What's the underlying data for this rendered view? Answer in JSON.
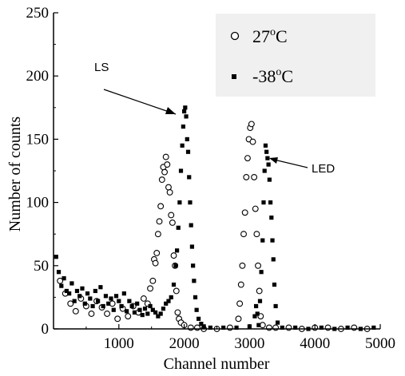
{
  "chart_data": {
    "type": "scatter",
    "xlabel": "Channel number",
    "ylabel": "Number of counts",
    "xlim": [
      0,
      5000
    ],
    "ylim": [
      0,
      250
    ],
    "xticks": [
      1000,
      2000,
      3000,
      4000,
      5000
    ],
    "yticks": [
      0,
      50,
      100,
      150,
      200,
      250
    ],
    "grid": false,
    "legend_position": "top-right",
    "series": [
      {
        "name": "27°C",
        "marker": "open-circle",
        "points": [
          [
            100,
            38
          ],
          [
            180,
            28
          ],
          [
            260,
            20
          ],
          [
            340,
            14
          ],
          [
            420,
            24
          ],
          [
            500,
            18
          ],
          [
            580,
            12
          ],
          [
            660,
            22
          ],
          [
            740,
            17
          ],
          [
            820,
            12
          ],
          [
            900,
            20
          ],
          [
            980,
            8
          ],
          [
            1060,
            16
          ],
          [
            1140,
            10
          ],
          [
            1220,
            18
          ],
          [
            1300,
            13
          ],
          [
            1380,
            24
          ],
          [
            1440,
            20
          ],
          [
            1480,
            32
          ],
          [
            1520,
            38
          ],
          [
            1540,
            55
          ],
          [
            1560,
            52
          ],
          [
            1580,
            60
          ],
          [
            1600,
            75
          ],
          [
            1620,
            85
          ],
          [
            1640,
            97
          ],
          [
            1660,
            118
          ],
          [
            1680,
            128
          ],
          [
            1700,
            124
          ],
          [
            1720,
            136
          ],
          [
            1740,
            130
          ],
          [
            1760,
            112
          ],
          [
            1780,
            108
          ],
          [
            1800,
            90
          ],
          [
            1820,
            84
          ],
          [
            1840,
            58
          ],
          [
            1860,
            50
          ],
          [
            1880,
            30
          ],
          [
            1900,
            13
          ],
          [
            1920,
            8
          ],
          [
            1950,
            5
          ],
          [
            2000,
            3
          ],
          [
            2100,
            1
          ],
          [
            2200,
            1
          ],
          [
            2300,
            0
          ],
          [
            2500,
            0
          ],
          [
            2700,
            1
          ],
          [
            2830,
            8
          ],
          [
            2850,
            20
          ],
          [
            2870,
            35
          ],
          [
            2890,
            50
          ],
          [
            2910,
            75
          ],
          [
            2930,
            92
          ],
          [
            2950,
            120
          ],
          [
            2970,
            135
          ],
          [
            2990,
            150
          ],
          [
            3010,
            159
          ],
          [
            3030,
            162
          ],
          [
            3050,
            148
          ],
          [
            3070,
            120
          ],
          [
            3090,
            95
          ],
          [
            3110,
            75
          ],
          [
            3130,
            50
          ],
          [
            3150,
            30
          ],
          [
            3170,
            10
          ],
          [
            3200,
            3
          ],
          [
            3300,
            1
          ],
          [
            3400,
            1
          ],
          [
            3600,
            1
          ],
          [
            3800,
            0
          ],
          [
            4000,
            1
          ],
          [
            4200,
            1
          ],
          [
            4400,
            0
          ],
          [
            4600,
            1
          ],
          [
            4800,
            0
          ]
        ]
      },
      {
        "name": "-38°C",
        "marker": "filled-square",
        "points": [
          [
            40,
            57
          ],
          [
            80,
            45
          ],
          [
            120,
            34
          ],
          [
            160,
            40
          ],
          [
            200,
            30
          ],
          [
            240,
            28
          ],
          [
            280,
            36
          ],
          [
            320,
            22
          ],
          [
            360,
            30
          ],
          [
            400,
            26
          ],
          [
            440,
            32
          ],
          [
            480,
            20
          ],
          [
            520,
            28
          ],
          [
            560,
            24
          ],
          [
            600,
            18
          ],
          [
            640,
            30
          ],
          [
            680,
            22
          ],
          [
            720,
            33
          ],
          [
            760,
            18
          ],
          [
            800,
            26
          ],
          [
            840,
            20
          ],
          [
            880,
            24
          ],
          [
            920,
            15
          ],
          [
            960,
            26
          ],
          [
            1000,
            22
          ],
          [
            1040,
            18
          ],
          [
            1080,
            28
          ],
          [
            1120,
            14
          ],
          [
            1160,
            22
          ],
          [
            1200,
            18
          ],
          [
            1240,
            13
          ],
          [
            1280,
            20
          ],
          [
            1320,
            15
          ],
          [
            1360,
            11
          ],
          [
            1400,
            16
          ],
          [
            1440,
            12
          ],
          [
            1480,
            18
          ],
          [
            1520,
            15
          ],
          [
            1560,
            13
          ],
          [
            1600,
            10
          ],
          [
            1640,
            12
          ],
          [
            1680,
            16
          ],
          [
            1720,
            20
          ],
          [
            1760,
            22
          ],
          [
            1800,
            25
          ],
          [
            1840,
            35
          ],
          [
            1870,
            50
          ],
          [
            1890,
            62
          ],
          [
            1910,
            80
          ],
          [
            1930,
            100
          ],
          [
            1950,
            125
          ],
          [
            1970,
            145
          ],
          [
            1985,
            160
          ],
          [
            2000,
            172
          ],
          [
            2015,
            175
          ],
          [
            2030,
            168
          ],
          [
            2045,
            150
          ],
          [
            2060,
            140
          ],
          [
            2075,
            120
          ],
          [
            2090,
            100
          ],
          [
            2105,
            82
          ],
          [
            2120,
            65
          ],
          [
            2135,
            50
          ],
          [
            2150,
            38
          ],
          [
            2170,
            25
          ],
          [
            2190,
            15
          ],
          [
            2220,
            8
          ],
          [
            2260,
            4
          ],
          [
            2300,
            2
          ],
          [
            2400,
            1
          ],
          [
            2600,
            1
          ],
          [
            2800,
            1
          ],
          [
            3000,
            2
          ],
          [
            3080,
            10
          ],
          [
            3100,
            18
          ],
          [
            3120,
            12
          ],
          [
            3140,
            3
          ],
          [
            3160,
            22
          ],
          [
            3180,
            45
          ],
          [
            3200,
            70
          ],
          [
            3215,
            100
          ],
          [
            3230,
            125
          ],
          [
            3245,
            145
          ],
          [
            3260,
            140
          ],
          [
            3275,
            135
          ],
          [
            3290,
            130
          ],
          [
            3305,
            118
          ],
          [
            3320,
            100
          ],
          [
            3335,
            88
          ],
          [
            3350,
            70
          ],
          [
            3365,
            55
          ],
          [
            3380,
            35
          ],
          [
            3400,
            18
          ],
          [
            3430,
            5
          ],
          [
            3500,
            1
          ],
          [
            3700,
            1
          ],
          [
            3900,
            0
          ],
          [
            4100,
            1
          ],
          [
            4300,
            0
          ],
          [
            4500,
            1
          ],
          [
            4700,
            0
          ],
          [
            4900,
            1
          ]
        ]
      }
    ],
    "annotations": [
      {
        "text": "LS",
        "x": 1950,
        "y": 168
      },
      {
        "text": "LED",
        "x": 3300,
        "y": 133
      }
    ]
  }
}
